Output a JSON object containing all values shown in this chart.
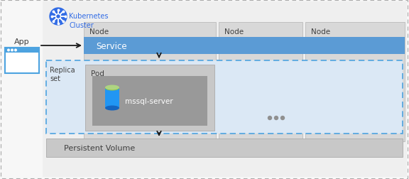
{
  "bg_outer": "#f7f7f7",
  "bg_cluster": "#efefef",
  "node_bg": "#d8d8d8",
  "node_border": "#c0c0c0",
  "service_bg": "#5b9bd5",
  "replicaset_bg": "#dbe8f5",
  "replicaset_border": "#4da3e0",
  "pod_bg": "#c8c8c8",
  "pod_inner_bg": "#999999",
  "pv_bg": "#c8c8c8",
  "pv_border": "#b0b0b0",
  "app_border": "#4da3e0",
  "app_bar": "#4da3e0",
  "k8s_blue": "#326ce5",
  "arrow_color": "#1a1a1a",
  "text_dark": "#404040",
  "text_white": "#ffffff",
  "text_blue": "#326ce5",
  "node_label": "Node",
  "service_label": "Service",
  "replicaset_label": "Replica\nset",
  "pod_label": "Pod",
  "mssql_label": "mssql-server",
  "pv_label": "Persistent Volume",
  "app_label": "App",
  "k8s_label": "Kubernetes\nCluster",
  "outer_dash": [
    4,
    3
  ],
  "replica_dash": [
    4,
    3
  ]
}
